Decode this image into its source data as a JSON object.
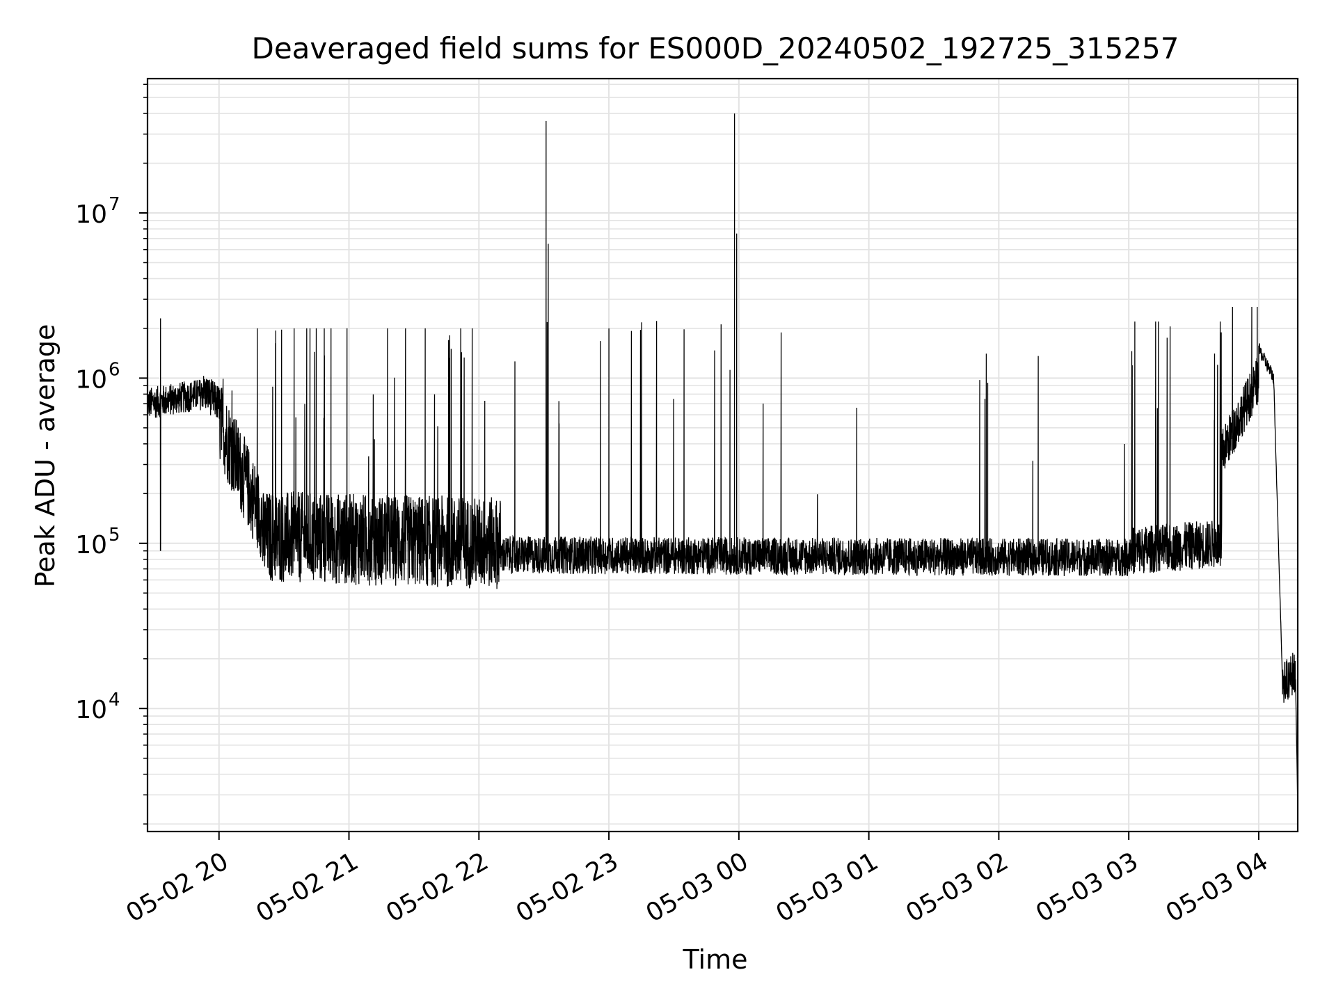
{
  "chart_data": {
    "type": "line",
    "title": "Deaveraged field sums for ES000D_20240502_192725_315257",
    "xlabel": "Time",
    "ylabel": "Peak ADU - average",
    "yscale": "log",
    "grid": true,
    "line_color": "#000000",
    "xlim": [
      "2024-05-02 19:27",
      "2024-05-03 04:18"
    ],
    "ylim": [
      1800,
      65000000
    ],
    "x_ticks": [
      {
        "t": "2024-05-02 20:00",
        "label": "05-02 20"
      },
      {
        "t": "2024-05-02 21:00",
        "label": "05-02 21"
      },
      {
        "t": "2024-05-02 22:00",
        "label": "05-02 22"
      },
      {
        "t": "2024-05-02 23:00",
        "label": "05-02 23"
      },
      {
        "t": "2024-05-03 00:00",
        "label": "05-03 00"
      },
      {
        "t": "2024-05-03 01:00",
        "label": "05-03 01"
      },
      {
        "t": "2024-05-03 02:00",
        "label": "05-03 02"
      },
      {
        "t": "2024-05-03 03:00",
        "label": "05-03 03"
      },
      {
        "t": "2024-05-03 04:00",
        "label": "05-03 04"
      }
    ],
    "y_ticks": [
      {
        "value": 10000,
        "mantissa": "10",
        "exponent": "4"
      },
      {
        "value": 100000,
        "mantissa": "10",
        "exponent": "5"
      },
      {
        "value": 1000000,
        "mantissa": "10",
        "exponent": "6"
      },
      {
        "value": 10000000,
        "mantissa": "10",
        "exponent": "7"
      }
    ],
    "segments": [
      {
        "start": "2024-05-02 19:27",
        "end": "2024-05-02 19:52",
        "base_from": 700000,
        "base_to": 800000,
        "noise": 1.25,
        "spike_rate": 0.04,
        "spike_max": 2300000
      },
      {
        "start": "2024-05-02 19:52",
        "end": "2024-05-02 20:00",
        "base_from": 850000,
        "base_to": 700000,
        "noise": 1.3,
        "spike_rate": 0.05,
        "spike_max": 2100000
      },
      {
        "start": "2024-05-02 20:00",
        "end": "2024-05-02 20:20",
        "base_from": 550000,
        "base_to": 140000,
        "noise": 1.8,
        "spike_rate": 0.12,
        "spike_max": 2000000
      },
      {
        "start": "2024-05-02 20:20",
        "end": "2024-05-02 22:10",
        "base_from": 110000,
        "base_to": 100000,
        "noise": 1.9,
        "spike_rate": 0.2,
        "spike_max": 2000000
      },
      {
        "start": "2024-05-02 22:10",
        "end": "2024-05-03 03:00",
        "base_from": 85000,
        "base_to": 82000,
        "noise": 1.3,
        "spike_rate": 0.09,
        "spike_max": 2300000
      },
      {
        "start": "2024-05-03 03:00",
        "end": "2024-05-03 03:43",
        "base_from": 90000,
        "base_to": 100000,
        "noise": 1.4,
        "spike_rate": 0.25,
        "spike_max": 2200000
      },
      {
        "start": "2024-05-03 03:43",
        "end": "2024-05-03 04:00",
        "base_from": 350000,
        "base_to": 1000000,
        "noise": 1.4,
        "spike_rate": 0.05,
        "spike_max": 2700000
      },
      {
        "start": "2024-05-03 04:00",
        "end": "2024-05-03 04:07",
        "base_from": 1500000,
        "base_to": 1000000,
        "noise": 1.1,
        "spike_rate": 0.0,
        "spike_max": 1000000
      },
      {
        "start": "2024-05-03 04:07",
        "end": "2024-05-03 04:11",
        "base_from": 900000,
        "base_to": 14000,
        "noise": 1.05,
        "spike_rate": 0.0,
        "spike_max": 14000
      },
      {
        "start": "2024-05-03 04:11",
        "end": "2024-05-03 04:17",
        "base_from": 14000,
        "base_to": 17000,
        "noise": 1.35,
        "spike_rate": 0.0,
        "spike_max": 23000
      },
      {
        "start": "2024-05-03 04:17",
        "end": "2024-05-03 04:18",
        "base_from": 15000,
        "base_to": 2500,
        "noise": 1.0,
        "spike_rate": 0.0,
        "spike_max": 2500
      }
    ],
    "peaks": [
      {
        "t": "2024-05-02 22:31",
        "value": 36000000
      },
      {
        "t": "2024-05-02 22:32",
        "value": 6500000
      },
      {
        "t": "2024-05-02 23:58",
        "value": 40000000
      },
      {
        "t": "2024-05-02 23:59",
        "value": 7500000
      },
      {
        "t": "2024-05-02 23:00",
        "value": 2000000
      },
      {
        "t": "2024-05-02 19:33",
        "value": 2300000
      }
    ]
  }
}
